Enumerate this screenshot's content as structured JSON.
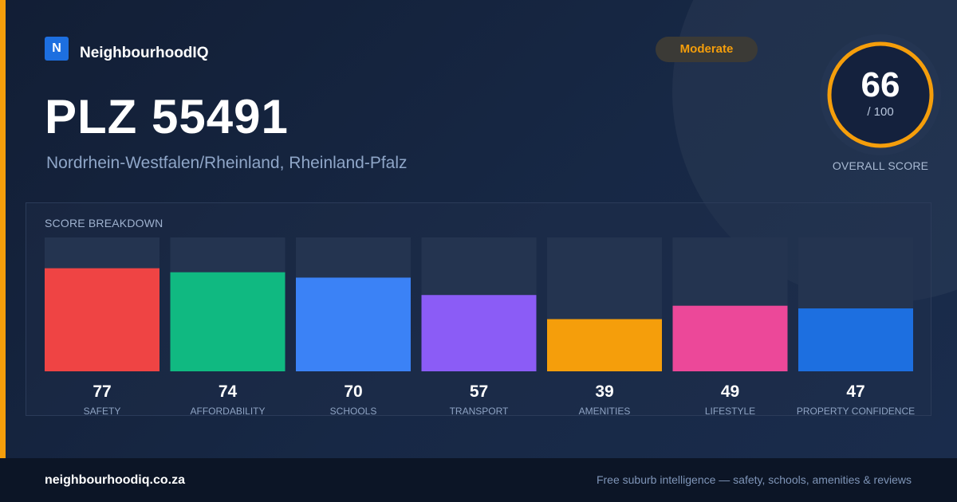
{
  "brand": {
    "logo_letter": "N",
    "name": "NeighbourhoodIQ"
  },
  "location": {
    "title": "PLZ 55491",
    "subtitle": "Nordrhein-Westfalen/Rheinland, Rheinland-Pfalz"
  },
  "rating_badge": "Moderate",
  "overall": {
    "score": "66",
    "max": "/ 100",
    "label": "OVERALL SCORE",
    "value": 66,
    "ring_color": "#f59e0b"
  },
  "breakdown_title": "SCORE BREAKDOWN",
  "chart_data": {
    "type": "bar",
    "title": "SCORE BREAKDOWN",
    "categories": [
      "SAFETY",
      "AFFORDABILITY",
      "SCHOOLS",
      "TRANSPORT",
      "AMENITIES",
      "LIFESTYLE",
      "PROPERTY CONFIDENCE"
    ],
    "values": [
      77,
      74,
      70,
      57,
      39,
      49,
      47
    ],
    "colors": [
      "#ef4444",
      "#10b981",
      "#3b82f6",
      "#8b5cf6",
      "#f59e0b",
      "#ec4899",
      "#1d6fe0"
    ],
    "ylim": [
      0,
      100
    ],
    "grid": false
  },
  "footer": {
    "url": "neighbourhoodiq.co.za",
    "tagline": "Free suburb intelligence — safety, schools, amenities & reviews"
  }
}
